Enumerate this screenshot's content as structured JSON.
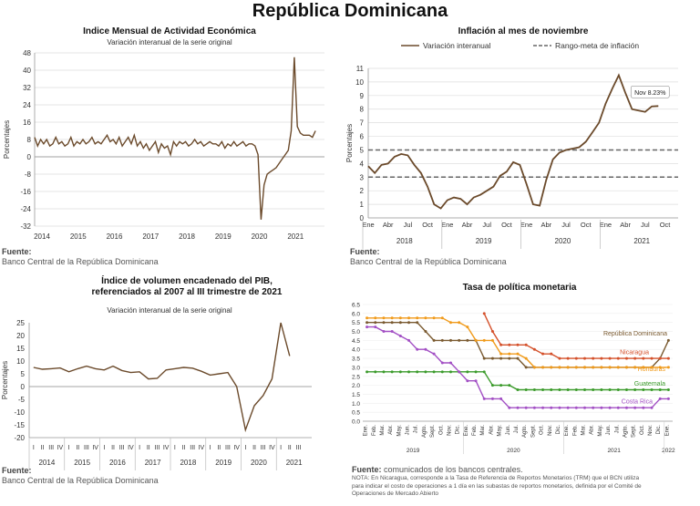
{
  "page_title": "República Dominicana",
  "colors": {
    "line": "#6b4a2b",
    "grid": "#dddddd",
    "axis": "#555555",
    "band": "#666666"
  },
  "chart_data": [
    {
      "id": "imae",
      "type": "line",
      "title": "Indice Mensual de  Actividad Económica",
      "subtitle": "Variación interanual de la serie original",
      "ylabel": "Porcentajes",
      "ylim": [
        -32,
        48
      ],
      "yticks": [
        48,
        40,
        32,
        24,
        16,
        8,
        0,
        -8,
        -16,
        -24,
        -32
      ],
      "xlim": [
        2014,
        2022
      ],
      "xticks": [
        "2014",
        "2015",
        "2016",
        "2017",
        "2018",
        "2019",
        "2020",
        "2021"
      ],
      "x": [
        2014.0,
        2014.083,
        2014.167,
        2014.25,
        2014.333,
        2014.417,
        2014.5,
        2014.583,
        2014.667,
        2014.75,
        2014.833,
        2014.917,
        2015.0,
        2015.083,
        2015.167,
        2015.25,
        2015.333,
        2015.417,
        2015.5,
        2015.583,
        2015.667,
        2015.75,
        2015.833,
        2015.917,
        2016.0,
        2016.083,
        2016.167,
        2016.25,
        2016.333,
        2016.417,
        2016.5,
        2016.583,
        2016.667,
        2016.75,
        2016.833,
        2016.917,
        2017.0,
        2017.083,
        2017.167,
        2017.25,
        2017.333,
        2017.417,
        2017.5,
        2017.583,
        2017.667,
        2017.75,
        2017.833,
        2017.917,
        2018.0,
        2018.083,
        2018.167,
        2018.25,
        2018.333,
        2018.417,
        2018.5,
        2018.583,
        2018.667,
        2018.75,
        2018.833,
        2018.917,
        2019.0,
        2019.083,
        2019.167,
        2019.25,
        2019.333,
        2019.417,
        2019.5,
        2019.583,
        2019.667,
        2019.75,
        2019.833,
        2019.917,
        2020.0,
        2020.083,
        2020.167,
        2020.25,
        2020.333,
        2020.417,
        2020.5,
        2020.583,
        2020.667,
        2020.75,
        2020.833,
        2020.917,
        2021.0,
        2021.083,
        2021.167,
        2021.25,
        2021.333,
        2021.417,
        2021.5,
        2021.583,
        2021.667,
        2021.75
      ],
      "values": [
        9,
        5,
        8,
        6,
        8,
        5,
        6,
        9,
        6,
        7,
        5,
        6,
        9,
        5,
        7,
        6,
        8,
        6,
        7,
        9,
        6,
        7,
        6,
        8,
        10,
        7,
        8,
        6,
        9,
        5,
        7,
        9,
        6,
        10,
        5,
        7,
        4,
        6,
        3,
        5,
        7,
        2,
        6,
        4,
        5,
        1,
        7,
        5,
        7,
        6,
        7,
        5,
        6,
        8,
        6,
        7,
        5,
        6,
        7,
        6,
        6,
        5,
        7,
        4,
        6,
        5,
        7,
        5,
        6,
        7,
        5,
        6,
        6,
        5,
        1,
        -29,
        -13,
        -8,
        -7,
        -6,
        -5,
        -3,
        -1,
        1,
        3,
        12,
        46,
        14,
        11,
        10,
        10,
        10,
        9,
        12
      ]
    },
    {
      "id": "inflacion",
      "type": "line",
      "title": "Inflación al mes de noviembre",
      "legend": [
        "Variación interanual",
        "Rango-meta de inflación"
      ],
      "ylabel": "Porcentajes",
      "ylim": [
        0,
        11
      ],
      "yticks": [
        0,
        1,
        2,
        3,
        4,
        5,
        6,
        7,
        8,
        9,
        10,
        11
      ],
      "band": [
        3,
        5
      ],
      "months": [
        "Ene",
        "Abr",
        "Jul",
        "Oct",
        "Ene",
        "Abr",
        "Jul",
        "Oct",
        "Ene",
        "Abr",
        "Jul",
        "Oct",
        "Ene",
        "Abr",
        "Jul",
        "Oct"
      ],
      "years": [
        "2018",
        "2019",
        "2020",
        "2021"
      ],
      "values": [
        3.8,
        3.3,
        3.9,
        4.0,
        4.5,
        4.7,
        4.6,
        3.9,
        3.3,
        2.3,
        1.0,
        0.7,
        1.3,
        1.5,
        1.4,
        1.0,
        1.5,
        1.7,
        2.0,
        2.3,
        3.1,
        3.4,
        4.1,
        3.9,
        2.5,
        1.0,
        0.9,
        2.8,
        4.3,
        4.8,
        5.0,
        5.1,
        5.2,
        5.6,
        6.3,
        7.0,
        8.4,
        9.5,
        10.5,
        9.2,
        8.0,
        7.9,
        7.8,
        8.2,
        8.23
      ],
      "annotation": "Nov 8.23%"
    },
    {
      "id": "pib",
      "type": "line",
      "title": "Índice de volumen encadenado del PIB, referenciados al 2007 al III trimestre de 2021",
      "subtitle": "Variación interanual de la serie original",
      "ylabel": "Porcentajes",
      "ylim": [
        -20,
        25
      ],
      "yticks": [
        25,
        20,
        15,
        10,
        5,
        0,
        -5,
        -10,
        -15,
        -20
      ],
      "quarters": [
        "I",
        "II",
        "III",
        "IV"
      ],
      "years": [
        "2014",
        "2015",
        "2016",
        "2017",
        "2018",
        "2019",
        "2020",
        "2021"
      ],
      "values": [
        7.5,
        6.8,
        7.0,
        7.3,
        5.8,
        7.0,
        8.0,
        7.0,
        6.5,
        8.0,
        6.3,
        5.5,
        5.8,
        3.0,
        3.2,
        6.5,
        7.0,
        7.5,
        7.2,
        6.0,
        4.5,
        5.0,
        5.5,
        0,
        -17.0,
        -7.5,
        -3.5,
        3.0,
        25.0,
        12.0
      ]
    },
    {
      "id": "tpm",
      "type": "line",
      "title": "Tasa de política monetaria",
      "ylim": [
        0,
        6
      ],
      "yticks": [
        "0.0",
        "0.5",
        "1.0",
        "1.5",
        "2.0",
        "2.5",
        "3.0",
        "3.5",
        "4.0",
        "4.5",
        "5.0",
        "5.5",
        "6.0",
        "6.5"
      ],
      "months": [
        "Ene.",
        "Feb.",
        "Mar.",
        "Abr.",
        "May.",
        "Jun.",
        "Jul.",
        "Agto.",
        "Sept.",
        "Oct.",
        "Nov.",
        "Dic.",
        "Ene.",
        "Feb.",
        "Mar.",
        "Abr.",
        "May.",
        "Jun.",
        "Jul.",
        "Agto.",
        "Sept.",
        "Oct.",
        "Nov.",
        "Dic.",
        "Ene.",
        "Feb.",
        "Mar.",
        "Abr.",
        "May.",
        "Jun.",
        "Jul.",
        "Agto.",
        "Sept.",
        "Oct.",
        "Nov.",
        "Dic.",
        "Ene."
      ],
      "years": [
        "2019",
        "2020",
        "2021",
        "2022"
      ],
      "series": [
        {
          "name": "República Dominicana",
          "color": "#7a5a30",
          "values": [
            5.5,
            5.5,
            5.5,
            5.5,
            5.5,
            5.5,
            5.5,
            5.0,
            4.5,
            4.5,
            4.5,
            4.5,
            4.5,
            4.5,
            3.5,
            3.5,
            3.5,
            3.5,
            3.5,
            3.0,
            3.0,
            3.0,
            3.0,
            3.0,
            3.0,
            3.0,
            3.0,
            3.0,
            3.0,
            3.0,
            3.0,
            3.0,
            3.0,
            3.0,
            3.0,
            3.5,
            4.5
          ]
        },
        {
          "name": "Nicaragua",
          "color": "#d4502a",
          "values": [
            null,
            null,
            null,
            null,
            null,
            null,
            null,
            null,
            null,
            null,
            null,
            null,
            null,
            null,
            6.0,
            5.0,
            4.25,
            4.25,
            4.25,
            4.25,
            4.0,
            3.75,
            3.75,
            3.5,
            3.5,
            3.5,
            3.5,
            3.5,
            3.5,
            3.5,
            3.5,
            3.5,
            3.5,
            3.5,
            3.5,
            3.5,
            3.5
          ]
        },
        {
          "name": "Honduras",
          "color": "#f09a1a",
          "values": [
            5.75,
            5.75,
            5.75,
            5.75,
            5.75,
            5.75,
            5.75,
            5.75,
            5.75,
            5.75,
            5.5,
            5.5,
            5.25,
            4.5,
            4.5,
            4.5,
            3.75,
            3.75,
            3.75,
            3.5,
            3.0,
            3.0,
            3.0,
            3.0,
            3.0,
            3.0,
            3.0,
            3.0,
            3.0,
            3.0,
            3.0,
            3.0,
            3.0,
            3.0,
            3.0,
            3.0,
            3.0
          ]
        },
        {
          "name": "Guatemala",
          "color": "#3a9a2a",
          "values": [
            2.75,
            2.75,
            2.75,
            2.75,
            2.75,
            2.75,
            2.75,
            2.75,
            2.75,
            2.75,
            2.75,
            2.75,
            2.75,
            2.75,
            2.75,
            2.0,
            2.0,
            2.0,
            1.75,
            1.75,
            1.75,
            1.75,
            1.75,
            1.75,
            1.75,
            1.75,
            1.75,
            1.75,
            1.75,
            1.75,
            1.75,
            1.75,
            1.75,
            1.75,
            1.75,
            1.75,
            1.75
          ]
        },
        {
          "name": "Costa Rica",
          "color": "#a24fc4",
          "values": [
            5.25,
            5.25,
            5.0,
            5.0,
            4.75,
            4.5,
            4.0,
            4.0,
            3.75,
            3.25,
            3.25,
            2.75,
            2.25,
            2.25,
            1.25,
            1.25,
            1.25,
            0.75,
            0.75,
            0.75,
            0.75,
            0.75,
            0.75,
            0.75,
            0.75,
            0.75,
            0.75,
            0.75,
            0.75,
            0.75,
            0.75,
            0.75,
            0.75,
            0.75,
            0.75,
            1.25,
            1.25
          ]
        }
      ]
    }
  ],
  "sources": {
    "label": "Fuente:",
    "bcrd": "Banco Central de la República Dominicana",
    "central_banks": "comunicados de los bancos centrales."
  },
  "note": [
    "NOTA: En Nicaragua, corresponde a la Tasa de Referencia de Reportos Monetarios (TRM) que el BCN utiliza",
    "para indicar el costo de operaciones a 1 día en las subastas de reportos monetarios, definida por el Comité de",
    "Operaciones de Mercado Abierto"
  ]
}
